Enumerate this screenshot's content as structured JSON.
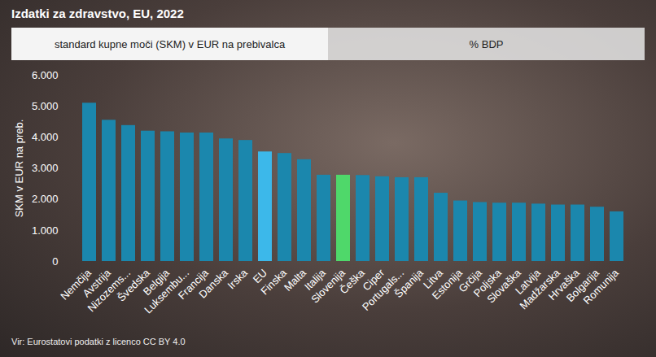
{
  "chart_data": {
    "type": "bar",
    "title": "Izdatki za zdravstvo, EU, 2022",
    "annotations": [
      "standard kupne moči (SKM) v EUR na prebivalca",
      "% BDP"
    ],
    "source": "Vir: Eurostatovi podatki z licenco CC BY 4.0",
    "y_label": "SKM v EUR na preb.",
    "categories": [
      "Nemčija",
      "Avstrija",
      "Nizozems...",
      "Švedska",
      "Belgija",
      "Luksembu...",
      "Francija",
      "Danska",
      "Irska",
      "EU",
      "Finska",
      "Malta",
      "Italija",
      "Slovenija",
      "Češka",
      "Ciper",
      "Portugals...",
      "Španija",
      "Litva",
      "Estonija",
      "Grčija",
      "Poljska",
      "Slovaška",
      "Latvija",
      "Madžarska",
      "Hrvaška",
      "Bolgarija",
      "Romunija"
    ],
    "values": [
      5100,
      4550,
      4380,
      4200,
      4180,
      4140,
      4140,
      3950,
      3900,
      3530,
      3480,
      3280,
      2780,
      2780,
      2770,
      2730,
      2700,
      2700,
      2200,
      1950,
      1900,
      1880,
      1880,
      1850,
      1820,
      1820,
      1750,
      1600
    ],
    "colors": [
      "#1b87ad",
      "#1b87ad",
      "#1b87ad",
      "#1b87ad",
      "#1b87ad",
      "#1b87ad",
      "#1b87ad",
      "#1b87ad",
      "#1b87ad",
      "#3cb8ea",
      "#1b87ad",
      "#1b87ad",
      "#1b87ad",
      "#4fd86a",
      "#1b87ad",
      "#1b87ad",
      "#1b87ad",
      "#1b87ad",
      "#1b87ad",
      "#1b87ad",
      "#1b87ad",
      "#1b87ad",
      "#1b87ad",
      "#1b87ad",
      "#1b87ad",
      "#1b87ad",
      "#1b87ad",
      "#1b87ad"
    ],
    "ylim": [
      0,
      6000
    ],
    "yticks": [
      0,
      {
        "value": 1000,
        "label": "1.000"
      },
      {
        "value": 2000,
        "label": "2.000"
      },
      {
        "value": 3000,
        "label": "3.000"
      },
      {
        "value": 4000,
        "label": "4.000"
      },
      {
        "value": 5000,
        "label": "5.000"
      },
      {
        "value": 6000,
        "label": "6.000"
      }
    ],
    "grid": false
  }
}
